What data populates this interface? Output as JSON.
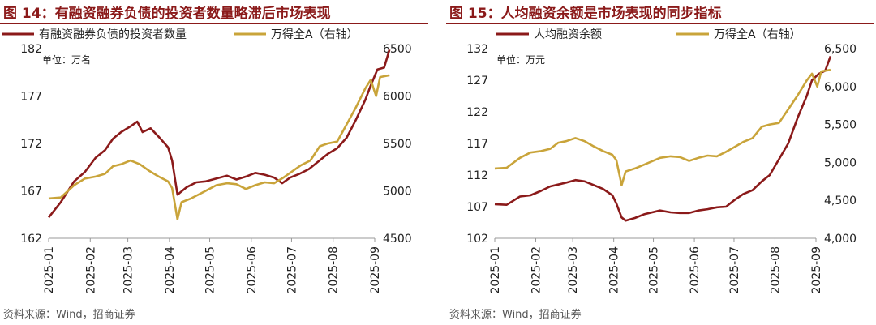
{
  "colors": {
    "primary": "#8b1a1a",
    "secondary": "#c9a43a"
  },
  "charts": [
    {
      "figure_title": "图 14：有融资融券负债的投资者数量略滞后市场表现",
      "source": "资料来源：Wind，招商证券",
      "unit_label": "单位：万名",
      "chart_data": {
        "type": "line",
        "x_type": "date",
        "x_ticks": [
          "2025-01",
          "2025-02",
          "2025-03",
          "2025-04",
          "2025-05",
          "2025-06",
          "2025-07",
          "2025-08",
          "2025-09"
        ],
        "left_axis": {
          "range": [
            162,
            182
          ],
          "ticks": [
            "162",
            "167",
            "172",
            "177",
            "182"
          ]
        },
        "right_axis": {
          "range": [
            4500,
            6500
          ],
          "ticks": [
            "4500",
            "5000",
            "5500",
            "6000",
            "6500"
          ]
        },
        "legend_position": "top",
        "series": [
          {
            "name": "有融资融券负债的投资者数量",
            "axis": "left",
            "color": "#8b1a1a",
            "points": [
              [
                "2025-01-01",
                164.2
              ],
              [
                "2025-01-10",
                165.8
              ],
              [
                "2025-01-20",
                168
              ],
              [
                "2025-01-28",
                169
              ],
              [
                "2025-02-05",
                170.5
              ],
              [
                "2025-02-12",
                171.3
              ],
              [
                "2025-02-18",
                172.5
              ],
              [
                "2025-02-24",
                173.2
              ],
              [
                "2025-03-03",
                173.8
              ],
              [
                "2025-03-08",
                174.3
              ],
              [
                "2025-03-12",
                173.2
              ],
              [
                "2025-03-18",
                173.6
              ],
              [
                "2025-03-24",
                172.7
              ],
              [
                "2025-03-31",
                171.6
              ],
              [
                "2025-04-03",
                170.2
              ],
              [
                "2025-04-07",
                166.6
              ],
              [
                "2025-04-14",
                167.4
              ],
              [
                "2025-04-21",
                167.9
              ],
              [
                "2025-04-28",
                168
              ],
              [
                "2025-05-06",
                168.3
              ],
              [
                "2025-05-14",
                168.6
              ],
              [
                "2025-05-21",
                168.2
              ],
              [
                "2025-05-28",
                168.5
              ],
              [
                "2025-06-04",
                168.9
              ],
              [
                "2025-06-11",
                168.7
              ],
              [
                "2025-06-18",
                168.4
              ],
              [
                "2025-06-24",
                167.8
              ],
              [
                "2025-06-30",
                168.4
              ],
              [
                "2025-07-07",
                168.8
              ],
              [
                "2025-07-14",
                169.3
              ],
              [
                "2025-07-21",
                170.1
              ],
              [
                "2025-07-28",
                170.9
              ],
              [
                "2025-08-04",
                171.5
              ],
              [
                "2025-08-11",
                172.6
              ],
              [
                "2025-08-18",
                174.5
              ],
              [
                "2025-08-25",
                176.6
              ],
              [
                "2025-08-29",
                178.1
              ],
              [
                "2025-09-03",
                179.8
              ],
              [
                "2025-09-08",
                180
              ],
              [
                "2025-09-12",
                181.9
              ]
            ]
          },
          {
            "name": "万得全A（右轴）",
            "axis": "right",
            "color": "#c9a43a",
            "points": [
              [
                "2025-01-01",
                4920
              ],
              [
                "2025-01-10",
                4930
              ],
              [
                "2025-01-20",
                5060
              ],
              [
                "2025-01-28",
                5130
              ],
              [
                "2025-02-05",
                5150
              ],
              [
                "2025-02-12",
                5180
              ],
              [
                "2025-02-18",
                5260
              ],
              [
                "2025-02-24",
                5280
              ],
              [
                "2025-03-03",
                5320
              ],
              [
                "2025-03-10",
                5280
              ],
              [
                "2025-03-17",
                5210
              ],
              [
                "2025-03-24",
                5150
              ],
              [
                "2025-03-31",
                5100
              ],
              [
                "2025-04-03",
                5030
              ],
              [
                "2025-04-07",
                4700
              ],
              [
                "2025-04-10",
                4880
              ],
              [
                "2025-04-17",
                4920
              ],
              [
                "2025-04-24",
                4970
              ],
              [
                "2025-05-06",
                5060
              ],
              [
                "2025-05-14",
                5080
              ],
              [
                "2025-05-21",
                5070
              ],
              [
                "2025-05-28",
                5020
              ],
              [
                "2025-06-04",
                5060
              ],
              [
                "2025-06-11",
                5090
              ],
              [
                "2025-06-18",
                5080
              ],
              [
                "2025-06-25",
                5140
              ],
              [
                "2025-07-01",
                5200
              ],
              [
                "2025-07-08",
                5270
              ],
              [
                "2025-07-15",
                5320
              ],
              [
                "2025-07-22",
                5470
              ],
              [
                "2025-07-28",
                5500
              ],
              [
                "2025-08-04",
                5520
              ],
              [
                "2025-08-11",
                5700
              ],
              [
                "2025-08-18",
                5880
              ],
              [
                "2025-08-25",
                6080
              ],
              [
                "2025-08-29",
                6170
              ],
              [
                "2025-09-02",
                6000
              ],
              [
                "2025-09-05",
                6200
              ],
              [
                "2025-09-12",
                6220
              ]
            ]
          }
        ]
      }
    },
    {
      "figure_title": "图 15：人均融资余额是市场表现的同步指标",
      "source": "资料来源：Wind，招商证券",
      "unit_label": "单位：万元",
      "chart_data": {
        "type": "line",
        "x_type": "date",
        "x_ticks": [
          "2025-01",
          "2025-02",
          "2025-03",
          "2025-04",
          "2025-05",
          "2025-06",
          "2025-07",
          "2025-08",
          "2025-09"
        ],
        "left_axis": {
          "range": [
            102,
            132
          ],
          "ticks": [
            "102",
            "107",
            "112",
            "117",
            "122",
            "127",
            "132"
          ]
        },
        "right_axis": {
          "range": [
            4000,
            6500
          ],
          "ticks": [
            "4,000",
            "4,500",
            "5,000",
            "5,500",
            "6,000",
            "6,500"
          ]
        },
        "legend_position": "top",
        "series": [
          {
            "name": "人均融资余额",
            "axis": "left",
            "color": "#8b1a1a",
            "points": [
              [
                "2025-01-01",
                107.4
              ],
              [
                "2025-01-10",
                107.3
              ],
              [
                "2025-01-20",
                108.6
              ],
              [
                "2025-01-28",
                108.8
              ],
              [
                "2025-02-05",
                109.5
              ],
              [
                "2025-02-12",
                110.2
              ],
              [
                "2025-02-18",
                110.5
              ],
              [
                "2025-02-24",
                110.8
              ],
              [
                "2025-03-03",
                111.2
              ],
              [
                "2025-03-10",
                111
              ],
              [
                "2025-03-17",
                110.4
              ],
              [
                "2025-03-24",
                109.8
              ],
              [
                "2025-03-31",
                108.8
              ],
              [
                "2025-04-03",
                107.5
              ],
              [
                "2025-04-07",
                105.3
              ],
              [
                "2025-04-10",
                104.8
              ],
              [
                "2025-04-17",
                105.2
              ],
              [
                "2025-04-24",
                105.8
              ],
              [
                "2025-05-06",
                106.4
              ],
              [
                "2025-05-14",
                106.1
              ],
              [
                "2025-05-21",
                106
              ],
              [
                "2025-05-28",
                106
              ],
              [
                "2025-06-04",
                106.4
              ],
              [
                "2025-06-11",
                106.6
              ],
              [
                "2025-06-18",
                106.9
              ],
              [
                "2025-06-25",
                107
              ],
              [
                "2025-07-01",
                108
              ],
              [
                "2025-07-08",
                109
              ],
              [
                "2025-07-15",
                109.6
              ],
              [
                "2025-07-22",
                111
              ],
              [
                "2025-07-28",
                112
              ],
              [
                "2025-08-04",
                114.5
              ],
              [
                "2025-08-11",
                117
              ],
              [
                "2025-08-18",
                121
              ],
              [
                "2025-08-25",
                124.5
              ],
              [
                "2025-08-29",
                127
              ],
              [
                "2025-09-03",
                128
              ],
              [
                "2025-09-08",
                128.5
              ],
              [
                "2025-09-12",
                130.8
              ]
            ]
          },
          {
            "name": "万得全A（右轴）",
            "axis": "right",
            "color": "#c9a43a",
            "points": [
              [
                "2025-01-01",
                4920
              ],
              [
                "2025-01-10",
                4930
              ],
              [
                "2025-01-20",
                5060
              ],
              [
                "2025-01-28",
                5130
              ],
              [
                "2025-02-05",
                5150
              ],
              [
                "2025-02-12",
                5180
              ],
              [
                "2025-02-18",
                5260
              ],
              [
                "2025-02-24",
                5280
              ],
              [
                "2025-03-03",
                5320
              ],
              [
                "2025-03-10",
                5280
              ],
              [
                "2025-03-17",
                5210
              ],
              [
                "2025-03-24",
                5150
              ],
              [
                "2025-03-31",
                5100
              ],
              [
                "2025-04-03",
                5030
              ],
              [
                "2025-04-07",
                4700
              ],
              [
                "2025-04-10",
                4880
              ],
              [
                "2025-04-17",
                4920
              ],
              [
                "2025-04-24",
                4970
              ],
              [
                "2025-05-06",
                5060
              ],
              [
                "2025-05-14",
                5080
              ],
              [
                "2025-05-21",
                5070
              ],
              [
                "2025-05-28",
                5020
              ],
              [
                "2025-06-04",
                5060
              ],
              [
                "2025-06-11",
                5090
              ],
              [
                "2025-06-18",
                5080
              ],
              [
                "2025-06-25",
                5140
              ],
              [
                "2025-07-01",
                5200
              ],
              [
                "2025-07-08",
                5270
              ],
              [
                "2025-07-15",
                5320
              ],
              [
                "2025-07-22",
                5470
              ],
              [
                "2025-07-28",
                5500
              ],
              [
                "2025-08-04",
                5520
              ],
              [
                "2025-08-11",
                5700
              ],
              [
                "2025-08-18",
                5880
              ],
              [
                "2025-08-25",
                6080
              ],
              [
                "2025-08-29",
                6170
              ],
              [
                "2025-09-02",
                6000
              ],
              [
                "2025-09-05",
                6200
              ],
              [
                "2025-09-12",
                6220
              ]
            ]
          }
        ]
      }
    }
  ]
}
